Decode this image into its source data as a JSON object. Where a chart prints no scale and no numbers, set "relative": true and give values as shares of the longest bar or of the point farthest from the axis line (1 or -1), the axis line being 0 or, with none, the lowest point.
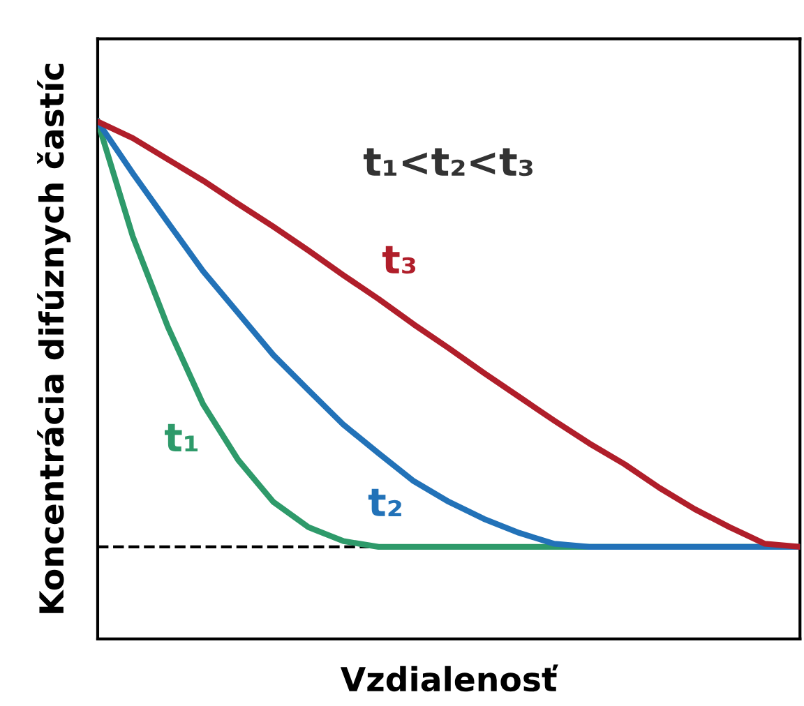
{
  "chart_data": {
    "type": "line",
    "relative": true,
    "xlabel": "Vzdialenosť",
    "ylabel": "Koncentrácia difúznych častíc",
    "categories": [
      null,
      null,
      null,
      null,
      null,
      null,
      null,
      null,
      null,
      null,
      null,
      null,
      null,
      null,
      null,
      null,
      null,
      null,
      null,
      null,
      null
    ],
    "series": [
      {
        "name": "t₁",
        "color": "#2e9a6a",
        "values": [
          1,
          0.778,
          0.603,
          0.454,
          0.346,
          0.265,
          0.216,
          0.189,
          0.178,
          0.178,
          0.178,
          0.178,
          0.178,
          0.178,
          0.178,
          0.178,
          0.178,
          0.178,
          0.178,
          0.178,
          0.178
        ]
      },
      {
        "name": "t₂",
        "color": "#2272b8",
        "values": [
          1,
          0.9,
          0.805,
          0.711,
          0.63,
          0.549,
          0.481,
          0.414,
          0.359,
          0.305,
          0.265,
          0.232,
          0.205,
          0.184,
          0.178,
          0.178,
          0.178,
          0.178,
          0.178,
          0.178,
          0.178
        ]
      },
      {
        "name": "t₃",
        "color": "#b01e2a",
        "values": [
          1,
          0.968,
          0.927,
          0.886,
          0.841,
          0.797,
          0.751,
          0.703,
          0.657,
          0.608,
          0.562,
          0.514,
          0.468,
          0.422,
          0.378,
          0.338,
          0.292,
          0.251,
          0.216,
          0.184,
          0.178
        ]
      }
    ],
    "ref_lines": [
      {
        "axis": "y",
        "value": 0.178,
        "color": "#000000",
        "line_style": "dashed"
      }
    ],
    "annotations": [
      "t₁<t₂<t₃"
    ],
    "legend": false,
    "marker": "none",
    "line_style": "solid",
    "tick_labels": false
  }
}
